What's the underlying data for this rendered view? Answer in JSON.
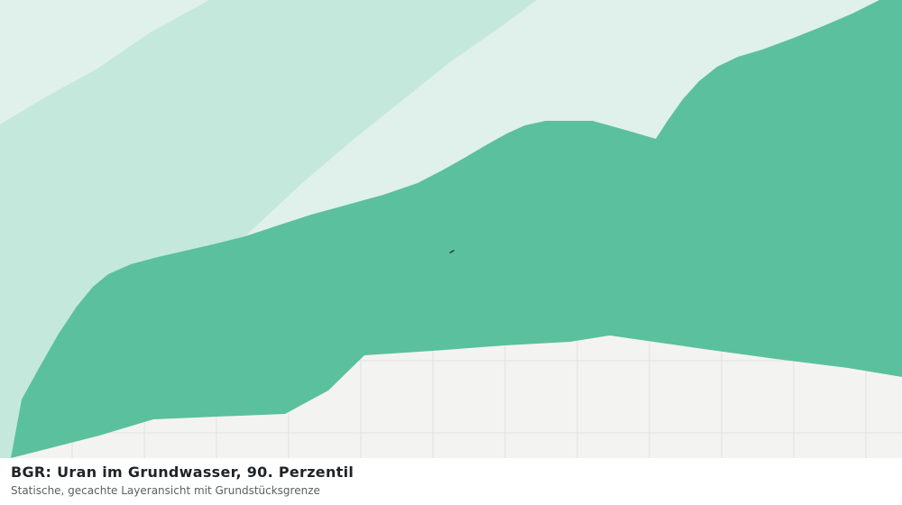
{
  "map": {
    "title": "BGR: Uran im Grundwasser, 90. Perzentil",
    "subtitle": "Statische, gecachte Layeransicht mit Grundstücksgrenze",
    "colors": {
      "background": "#f3f4f2",
      "grid": "#e0e2df",
      "zone_lightest": "#dff1ea",
      "zone_light": "#c5e8dc",
      "zone_main": "#5bc09e",
      "parcel_marker": "#1e3a2f"
    }
  }
}
